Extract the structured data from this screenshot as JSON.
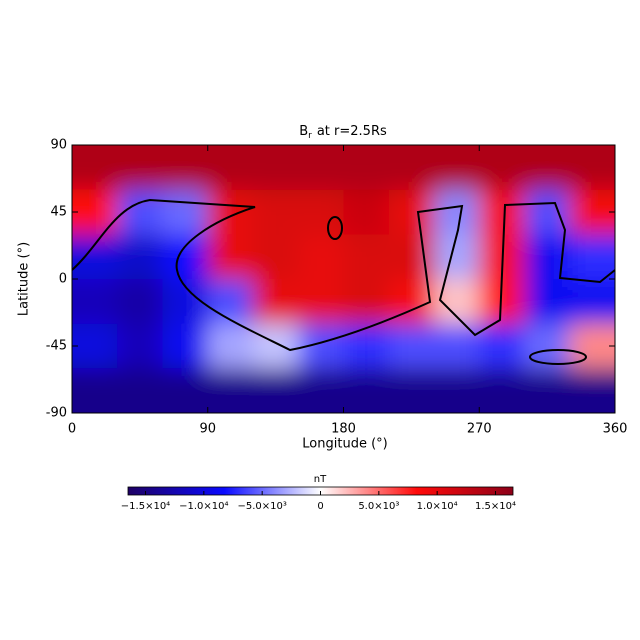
{
  "chart_data": {
    "type": "heatmap",
    "title": {
      "symbol": "B",
      "subscript": "r",
      "rest": "at r=2.5Rs"
    },
    "x_label": "Longitude (°)",
    "y_label": "Latitude (°)",
    "xlim": [
      0,
      360
    ],
    "ylim": [
      -90,
      90
    ],
    "xticks": [
      0,
      90,
      180,
      270,
      360
    ],
    "yticks": [
      -90,
      -45,
      0,
      45,
      90
    ],
    "x": [
      15,
      45,
      75,
      105,
      135,
      165,
      195,
      225,
      255,
      285,
      315,
      345
    ],
    "y": [
      75,
      45,
      15,
      -15,
      -45,
      -75
    ],
    "z": [
      [
        14000,
        14000,
        14000,
        14000,
        14000,
        14000,
        14000,
        14000,
        14000,
        14000,
        14000,
        14000
      ],
      [
        8000,
        -6000,
        -5000,
        10000,
        11000,
        11000,
        12000,
        10000,
        -4000,
        9000,
        -6000,
        9000
      ],
      [
        -10000,
        -11000,
        -8000,
        10000,
        11000,
        10000,
        11000,
        11000,
        -3000,
        9000,
        -9000,
        -7000
      ],
      [
        -12000,
        -13000,
        -10000,
        -6000,
        10000,
        10000,
        11000,
        9000,
        2000,
        8000,
        -9000,
        -9000
      ],
      [
        -10000,
        -12000,
        -9000,
        -3000,
        -2000,
        -6000,
        -7000,
        -6000,
        -6000,
        -7000,
        -5000,
        4000
      ],
      [
        -14500,
        -14500,
        -14500,
        -14500,
        -14500,
        -14500,
        -14500,
        -14500,
        -14500,
        -14500,
        -14500,
        -14500
      ]
    ],
    "colorbar": {
      "label": "nT",
      "zlim": [
        -16500,
        16500
      ],
      "colors": [
        "#1e0064",
        "#0a0aff",
        "#ffffff",
        "#ff0a0a",
        "#8c0018"
      ],
      "ticks": [
        {
          "value": -15000,
          "label": "−1.5×10⁴"
        },
        {
          "value": -10000,
          "label": "−1.0×10⁴"
        },
        {
          "value": -5000,
          "label": "−5.0×10³"
        },
        0,
        {
          "value": 5000,
          "label": "5.0×10³"
        },
        {
          "value": 10000,
          "label": "1.0×10⁴"
        },
        {
          "value": 15000,
          "label": "1.5×10⁴"
        }
      ]
    }
  }
}
